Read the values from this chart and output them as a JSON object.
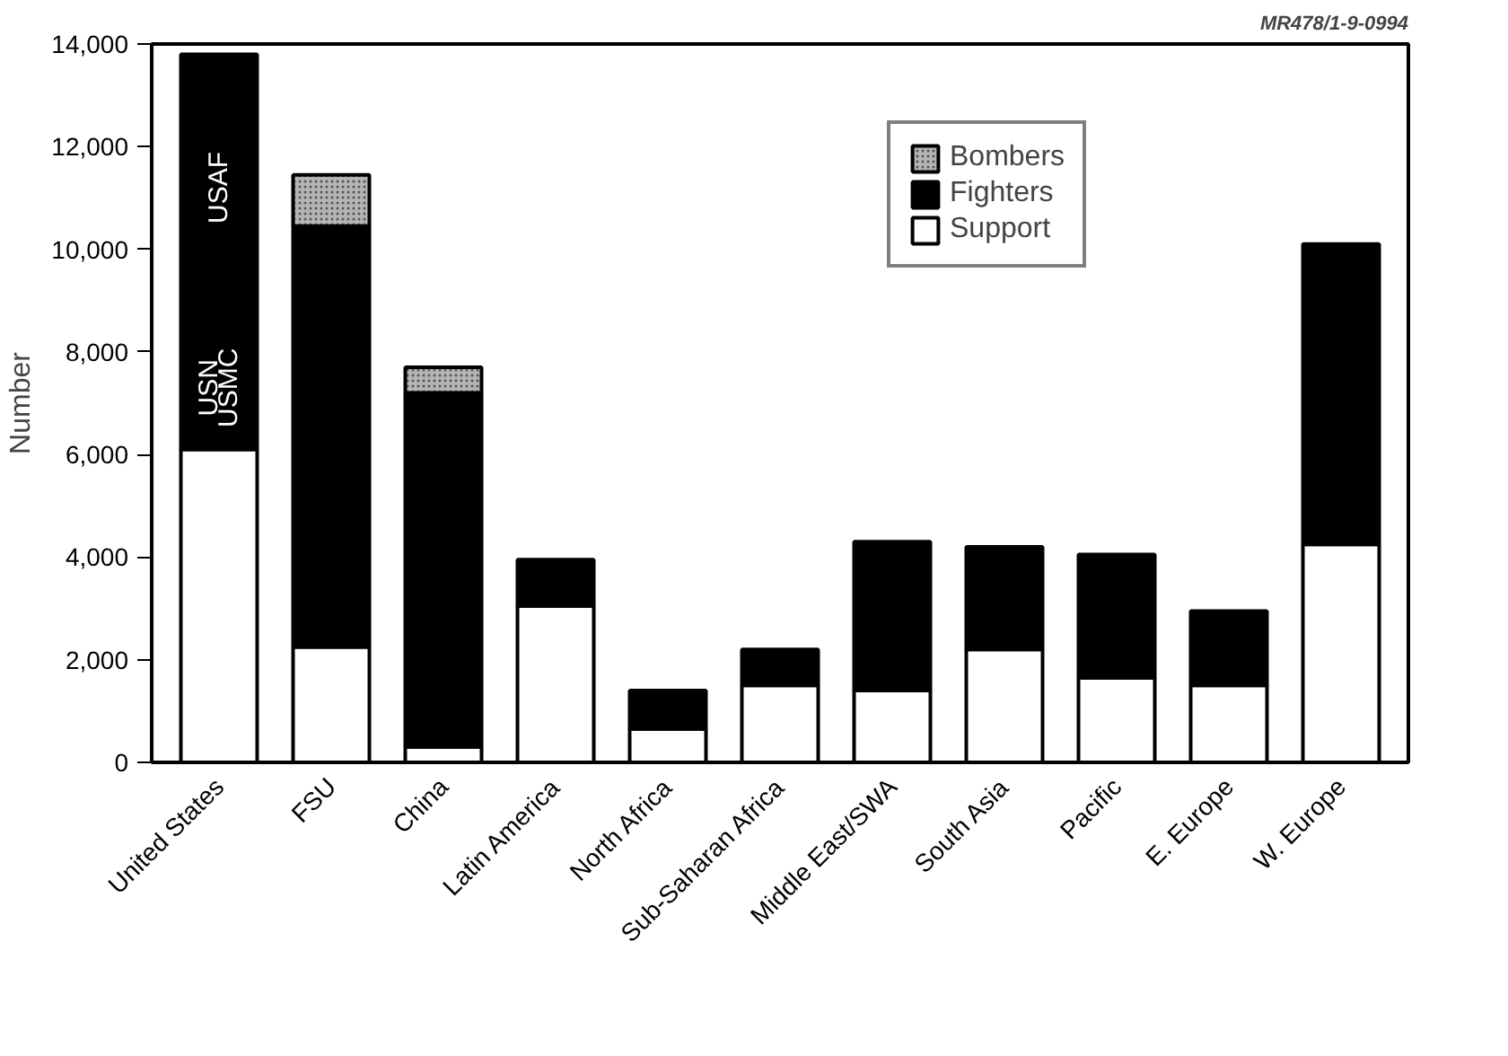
{
  "chart_data": {
    "type": "bar",
    "stacked": true,
    "ylabel": "Number",
    "categories": [
      "United States",
      "FSU",
      "China",
      "Latin America",
      "North Africa",
      "Sub-Saharan Africa",
      "Middle East/SWA",
      "South Asia",
      "Pacific",
      "E. Europe",
      "W. Europe"
    ],
    "series": [
      {
        "name": "Support",
        "color": "#ffffff",
        "values": [
          6100,
          2250,
          300,
          3050,
          650,
          1500,
          1400,
          2200,
          1650,
          1500,
          4250
        ]
      },
      {
        "name": "Fighters",
        "color": "#000000",
        "values": [
          7700,
          8200,
          6900,
          900,
          750,
          700,
          2900,
          2000,
          2400,
          1450,
          5850
        ]
      },
      {
        "name": "Bombers",
        "color": "#b4b4b4",
        "values": [
          null,
          1000,
          500,
          null,
          null,
          null,
          null,
          null,
          null,
          null,
          null
        ]
      }
    ],
    "ylim": [
      0,
      14000
    ],
    "yticks": [
      0,
      {
        "value": 2000,
        "label": "2,000"
      },
      {
        "value": 4000,
        "label": "4,000"
      },
      {
        "value": 6000,
        "label": "6,000"
      },
      {
        "value": 8000,
        "label": "8,000"
      },
      {
        "value": 10000,
        "label": "10,000"
      },
      {
        "value": 12000,
        "label": "12,000"
      },
      {
        "value": 14000,
        "label": "14,000"
      }
    ],
    "grid": false,
    "legend": "top right",
    "annotations": [
      {
        "text": "USAF",
        "x": "United States",
        "y": 11200
      },
      {
        "text": "USN\nUSMC",
        "x": "United States",
        "y": 7300
      },
      "MR478/1-9-0994"
    ]
  }
}
